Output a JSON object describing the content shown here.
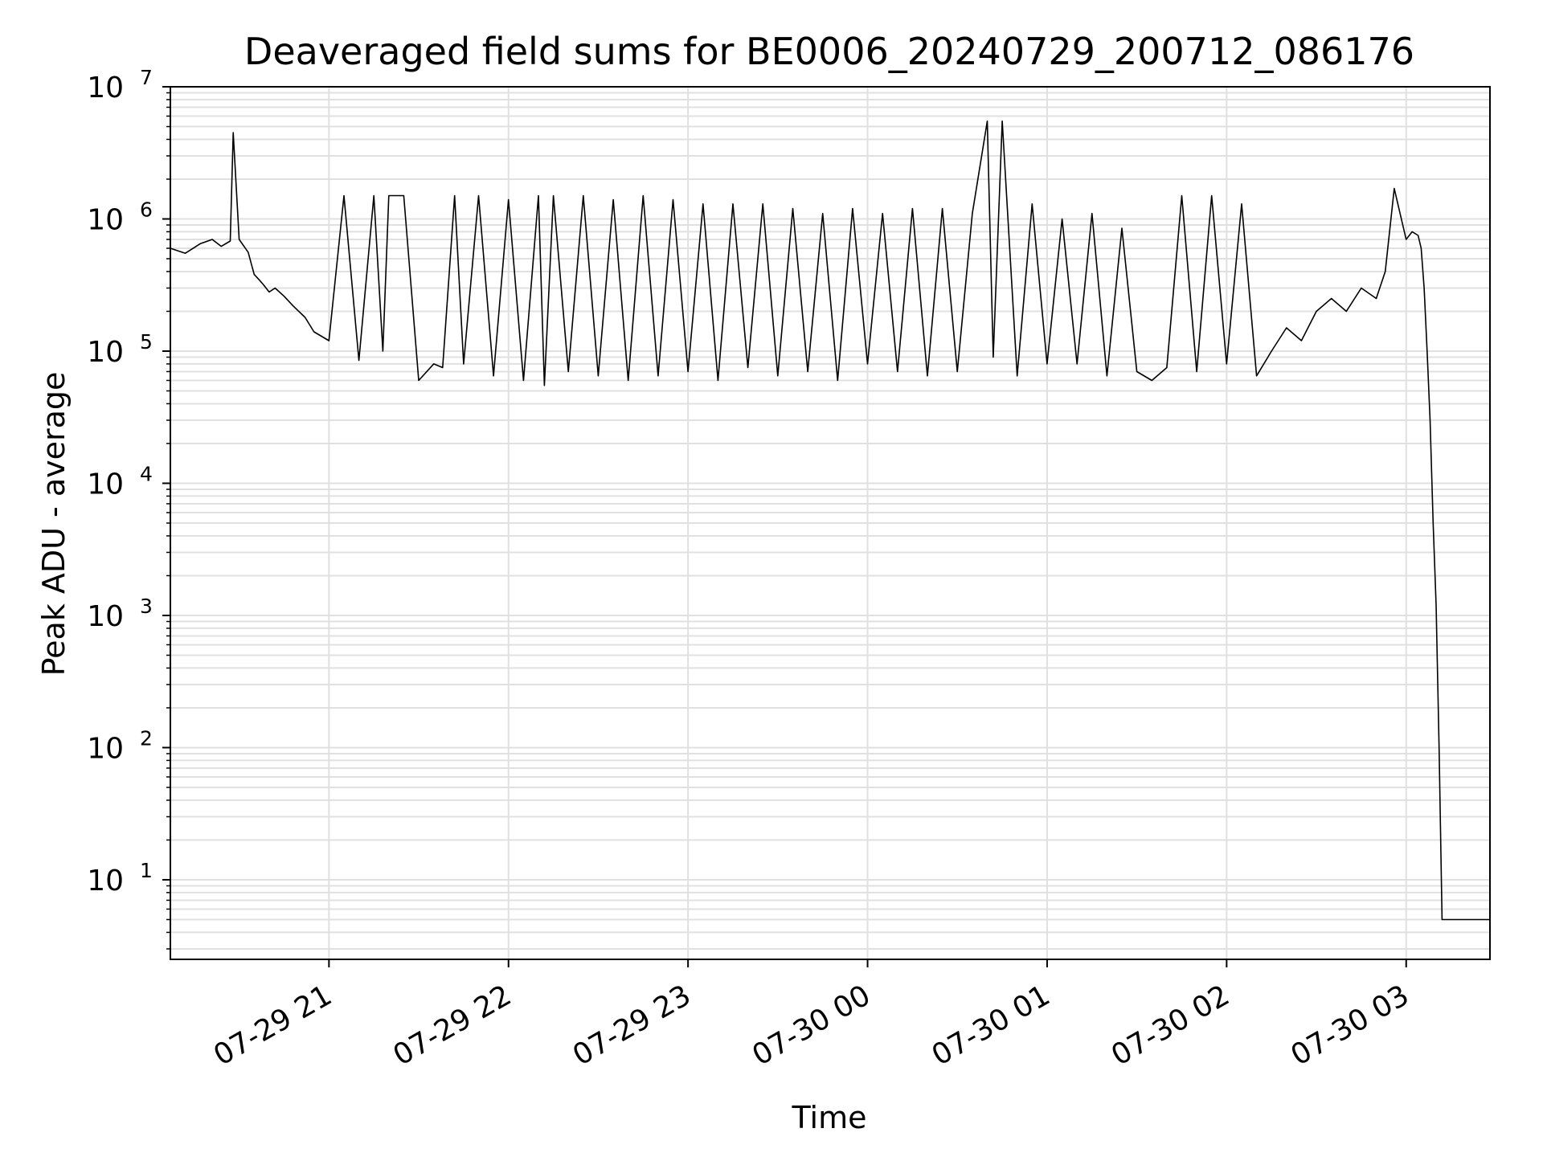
{
  "chart_data": {
    "type": "line",
    "title": "Deaveraged field sums for BE0006_20240729_200712_086176",
    "xlabel": "Time",
    "ylabel": "Peak ADU - average",
    "yscale": "log",
    "ylim": [
      2.5,
      10000000
    ],
    "xlim": [
      "2024-07-29 20:07:00",
      "2024-07-30 03:28:00"
    ],
    "grid": true,
    "line_color": "#000000",
    "grid_color": "#e0e0e0",
    "x_ticks": [
      {
        "time": "2024-07-29 21:00",
        "label": "07-29 21"
      },
      {
        "time": "2024-07-29 22:00",
        "label": "07-29 22"
      },
      {
        "time": "2024-07-29 23:00",
        "label": "07-29 23"
      },
      {
        "time": "2024-07-30 00:00",
        "label": "07-30 00"
      },
      {
        "time": "2024-07-30 01:00",
        "label": "07-30 01"
      },
      {
        "time": "2024-07-30 02:00",
        "label": "07-30 02"
      },
      {
        "time": "2024-07-30 03:00",
        "label": "07-30 03"
      }
    ],
    "y_ticks": [
      {
        "value": 10,
        "base": "10",
        "exp": "1"
      },
      {
        "value": 100,
        "base": "10",
        "exp": "2"
      },
      {
        "value": 1000,
        "base": "10",
        "exp": "3"
      },
      {
        "value": 10000,
        "base": "10",
        "exp": "4"
      },
      {
        "value": 100000,
        "base": "10",
        "exp": "5"
      },
      {
        "value": 1000000,
        "base": "10",
        "exp": "6"
      },
      {
        "value": 10000000,
        "base": "10",
        "exp": "7"
      }
    ],
    "series": [
      {
        "x": [
          "2024-07-29 20:07",
          "2024-07-29 20:12",
          "2024-07-29 20:17",
          "2024-07-29 20:21",
          "2024-07-29 20:24",
          "2024-07-29 20:27",
          "2024-07-29 20:28",
          "2024-07-29 20:30",
          "2024-07-29 20:33",
          "2024-07-29 20:35",
          "2024-07-29 20:37",
          "2024-07-29 20:38",
          "2024-07-29 20:40",
          "2024-07-29 20:42",
          "2024-07-29 20:45",
          "2024-07-29 20:48",
          "2024-07-29 20:52",
          "2024-07-29 20:55",
          "2024-07-29 21:00",
          "2024-07-29 21:05",
          "2024-07-29 21:10",
          "2024-07-29 21:15",
          "2024-07-29 21:18",
          "2024-07-29 21:20",
          "2024-07-29 21:25",
          "2024-07-29 21:30",
          "2024-07-29 21:35",
          "2024-07-29 21:38",
          "2024-07-29 21:42",
          "2024-07-29 21:45",
          "2024-07-29 21:50",
          "2024-07-29 21:55",
          "2024-07-29 22:00",
          "2024-07-29 22:05",
          "2024-07-29 22:10",
          "2024-07-29 22:12",
          "2024-07-29 22:15",
          "2024-07-29 22:20",
          "2024-07-29 22:25",
          "2024-07-29 22:30",
          "2024-07-29 22:35",
          "2024-07-29 22:40",
          "2024-07-29 22:45",
          "2024-07-29 22:50",
          "2024-07-29 22:55",
          "2024-07-29 23:00",
          "2024-07-29 23:05",
          "2024-07-29 23:10",
          "2024-07-29 23:15",
          "2024-07-29 23:20",
          "2024-07-29 23:25",
          "2024-07-29 23:30",
          "2024-07-29 23:35",
          "2024-07-29 23:40",
          "2024-07-29 23:45",
          "2024-07-29 23:50",
          "2024-07-29 23:55",
          "2024-07-30 00:00",
          "2024-07-30 00:05",
          "2024-07-30 00:10",
          "2024-07-30 00:15",
          "2024-07-30 00:20",
          "2024-07-30 00:25",
          "2024-07-30 00:30",
          "2024-07-30 00:35",
          "2024-07-30 00:40",
          "2024-07-30 00:42",
          "2024-07-30 00:45",
          "2024-07-30 00:50",
          "2024-07-30 00:55",
          "2024-07-30 01:00",
          "2024-07-30 01:05",
          "2024-07-30 01:10",
          "2024-07-30 01:15",
          "2024-07-30 01:20",
          "2024-07-30 01:25",
          "2024-07-30 01:30",
          "2024-07-30 01:35",
          "2024-07-30 01:40",
          "2024-07-30 01:45",
          "2024-07-30 01:50",
          "2024-07-30 01:55",
          "2024-07-30 02:00",
          "2024-07-30 02:05",
          "2024-07-30 02:10",
          "2024-07-30 02:15",
          "2024-07-30 02:20",
          "2024-07-30 02:25",
          "2024-07-30 02:30",
          "2024-07-30 02:35",
          "2024-07-30 02:40",
          "2024-07-30 02:45",
          "2024-07-30 02:50",
          "2024-07-30 02:53",
          "2024-07-30 02:56",
          "2024-07-30 03:00",
          "2024-07-30 03:02",
          "2024-07-30 03:04",
          "2024-07-30 03:05",
          "2024-07-30 03:06",
          "2024-07-30 03:07",
          "2024-07-30 03:08",
          "2024-07-30 03:09",
          "2024-07-30 03:10",
          "2024-07-30 03:11",
          "2024-07-30 03:12",
          "2024-07-30 03:13",
          "2024-07-30 03:20",
          "2024-07-30 03:28"
        ],
        "y": [
          600000,
          550000,
          650000,
          700000,
          620000,
          680000,
          4500000,
          700000,
          560000,
          380000,
          340000,
          320000,
          280000,
          300000,
          260000,
          220000,
          180000,
          140000,
          120000,
          1500000,
          85000,
          1500000,
          100000,
          1500000,
          1500000,
          60000,
          80000,
          75000,
          1500000,
          80000,
          1500000,
          65000,
          1400000,
          60000,
          1500000,
          55000,
          1500000,
          70000,
          1500000,
          65000,
          1400000,
          60000,
          1500000,
          65000,
          1400000,
          70000,
          1300000,
          60000,
          1300000,
          75000,
          1300000,
          65000,
          1200000,
          70000,
          1100000,
          60000,
          1200000,
          80000,
          1100000,
          70000,
          1200000,
          65000,
          1200000,
          70000,
          1100000,
          5500000,
          90000,
          5500000,
          65000,
          1300000,
          80000,
          1000000,
          80000,
          1100000,
          65000,
          850000,
          70000,
          60000,
          75000,
          1500000,
          70000,
          1500000,
          80000,
          1300000,
          65000,
          100000,
          150000,
          120000,
          200000,
          250000,
          200000,
          300000,
          250000,
          400000,
          1700000,
          700000,
          800000,
          750000,
          600000,
          300000,
          100000,
          30000,
          5000,
          1200,
          100,
          5,
          5,
          5,
          5
        ]
      }
    ]
  }
}
